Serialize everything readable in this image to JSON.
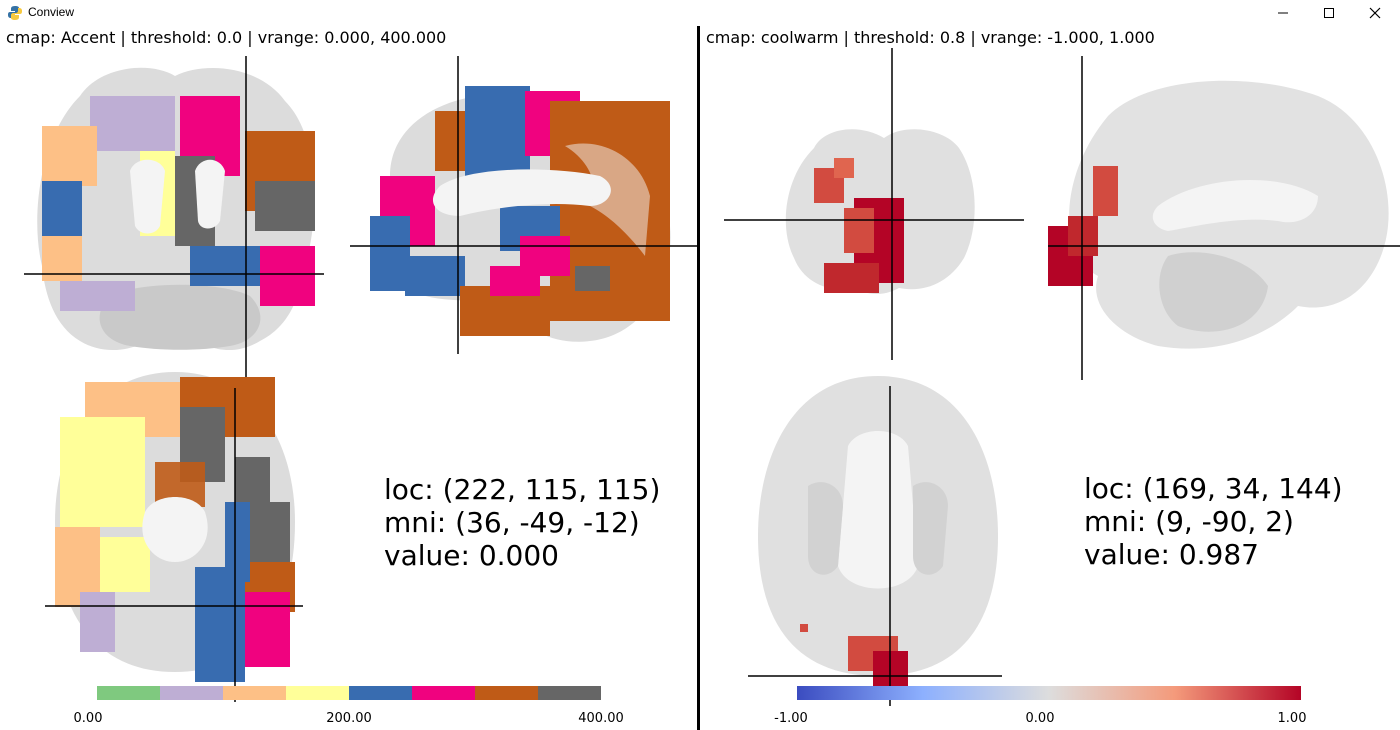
{
  "window": {
    "title": "Conview"
  },
  "left": {
    "cmap_label": "cmap: ",
    "cmap": "Accent",
    "threshold_label": " | threshold: ",
    "threshold": "0.0",
    "vrange_label": " | vrange: ",
    "vrange": "0.000, 400.000",
    "info": {
      "loc_label": "loc: ",
      "loc": "(222, 115, 115)",
      "mni_label": "mni: ",
      "mni": "(36, -49, -12)",
      "value_label": "value: ",
      "value": "0.000"
    },
    "colorbar": {
      "colors": [
        "#7fc97f",
        "#beaed4",
        "#fdc086",
        "#ffff99",
        "#386cb0",
        "#f0027f",
        "#bf5b17",
        "#666666"
      ],
      "ticks": [
        "0.00",
        "200.00",
        "400.00"
      ]
    }
  },
  "right": {
    "cmap_label": "cmap: ",
    "cmap": "coolwarm",
    "threshold_label": " | threshold: ",
    "threshold": "0.8",
    "vrange_label": " | vrange: ",
    "vrange": "-1.000, 1.000",
    "info": {
      "loc_label": "loc: ",
      "loc": "(169, 34, 144)",
      "mni_label": "mni: ",
      "mni": "(9, -90, 2)",
      "value_label": "value: ",
      "value": "0.987"
    },
    "colorbar": {
      "gradient": [
        "#3b4cc0",
        "#8db0fe",
        "#dddddd",
        "#f49a7b",
        "#b40426"
      ],
      "ticks": [
        "-1.00",
        "0.00",
        "1.00"
      ]
    }
  }
}
